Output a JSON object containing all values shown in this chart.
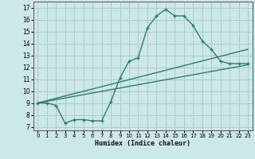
{
  "xlabel": "Humidex (Indice chaleur)",
  "xlim": [
    -0.5,
    23.5
  ],
  "ylim": [
    6.7,
    17.5
  ],
  "xticks": [
    0,
    1,
    2,
    3,
    4,
    5,
    6,
    7,
    8,
    9,
    10,
    11,
    12,
    13,
    14,
    15,
    16,
    17,
    18,
    19,
    20,
    21,
    22,
    23
  ],
  "yticks": [
    7,
    8,
    9,
    10,
    11,
    12,
    13,
    14,
    15,
    16,
    17
  ],
  "bg_color": "#cde8e8",
  "line_color": "#2e7d6e",
  "grid_color": "#aacccc",
  "line1_x": [
    0,
    1,
    2,
    3,
    4,
    5,
    6,
    7,
    8,
    9,
    10,
    11,
    12,
    13,
    14,
    15,
    16,
    17,
    18,
    19,
    20,
    21,
    22,
    23
  ],
  "line1_y": [
    9.0,
    9.0,
    8.8,
    7.3,
    7.6,
    7.6,
    7.5,
    7.5,
    9.1,
    11.1,
    12.5,
    12.8,
    15.3,
    16.3,
    16.85,
    16.3,
    16.3,
    15.5,
    14.2,
    13.5,
    12.5,
    12.3,
    12.3,
    12.3
  ],
  "line2_x": [
    0,
    23
  ],
  "line2_y": [
    9.0,
    13.5
  ],
  "line3_x": [
    0,
    23
  ],
  "line3_y": [
    9.0,
    12.2
  ]
}
